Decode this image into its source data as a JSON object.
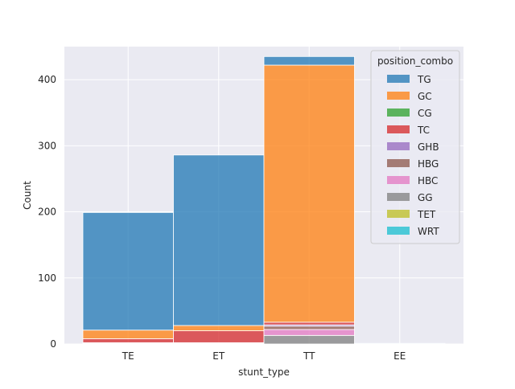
{
  "chart_data": {
    "type": "bar",
    "stacked": true,
    "title": "",
    "xlabel": "stunt_type",
    "ylabel": "Count",
    "categories": [
      "TE",
      "ET",
      "TT",
      "EE"
    ],
    "ylim": [
      0,
      450
    ],
    "yticks": [
      0,
      100,
      200,
      300,
      400
    ],
    "grid": true,
    "legend": {
      "title": "position_combo",
      "placement": "top-right"
    },
    "series": [
      {
        "name": "TG",
        "color": "#1f77b4",
        "values": [
          178,
          258,
          13,
          0
        ]
      },
      {
        "name": "GC",
        "color": "#ff7f0e",
        "values": [
          13,
          8,
          389,
          0
        ]
      },
      {
        "name": "CG",
        "color": "#2ca02c",
        "values": [
          0,
          0,
          0,
          0
        ]
      },
      {
        "name": "TC",
        "color": "#d62728",
        "values": [
          6,
          18,
          4,
          0
        ]
      },
      {
        "name": "GHB",
        "color": "#9467bd",
        "values": [
          0,
          0,
          2,
          0
        ]
      },
      {
        "name": "HBG",
        "color": "#8c564b",
        "values": [
          0,
          0,
          5,
          0
        ]
      },
      {
        "name": "HBC",
        "color": "#e377c2",
        "values": [
          1,
          1,
          9,
          0
        ]
      },
      {
        "name": "GG",
        "color": "#7f7f7f",
        "values": [
          1,
          1,
          13,
          0
        ]
      },
      {
        "name": "TET",
        "color": "#bcbd22",
        "values": [
          0,
          0,
          0,
          0
        ]
      },
      {
        "name": "WRT",
        "color": "#17becf",
        "values": [
          0,
          0,
          0,
          1
        ]
      }
    ]
  }
}
